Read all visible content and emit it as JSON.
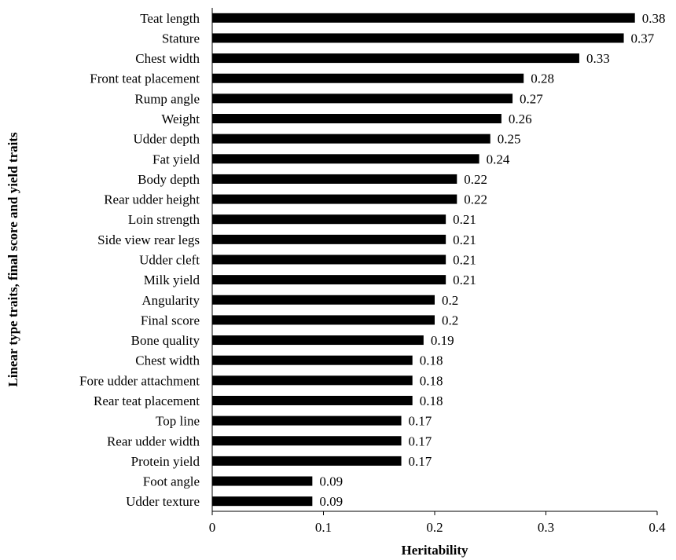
{
  "chart_data": {
    "type": "bar",
    "orientation": "horizontal",
    "title": "",
    "xlabel": "Heritability",
    "ylabel": "Linear type traits, final score and yield traits",
    "xlim": [
      0,
      0.4
    ],
    "xticks": [
      "0",
      "0.1",
      "0.2",
      "0.3",
      "0.4"
    ],
    "grid": false,
    "legend": "none",
    "bar_color": "#000000",
    "categories": [
      "Teat length",
      "Stature",
      "Chest width",
      "Front teat placement",
      "Rump angle",
      "Weight",
      "Udder depth",
      "Fat yield",
      "Body depth",
      "Rear udder height",
      "Loin strength",
      "Side view rear legs",
      "Udder cleft",
      "Milk yield",
      "Angularity",
      "Final score",
      "Bone quality",
      "Chest width",
      "Fore udder attachment",
      "Rear teat placement",
      "Top line",
      "Rear udder width",
      "Protein yield",
      "Foot angle",
      "Udder texture"
    ],
    "values": [
      0.38,
      0.37,
      0.33,
      0.28,
      0.27,
      0.26,
      0.25,
      0.24,
      0.22,
      0.22,
      0.21,
      0.21,
      0.21,
      0.21,
      0.2,
      0.2,
      0.19,
      0.18,
      0.18,
      0.18,
      0.17,
      0.17,
      0.17,
      0.09,
      0.09
    ],
    "value_labels": [
      "0.38",
      "0.37",
      "0.33",
      "0.28",
      "0.27",
      "0.26",
      "0.25",
      "0.24",
      "0.22",
      "0.22",
      "0.21",
      "0.21",
      "0.21",
      "0.21",
      "0.2",
      "0.2",
      "0.19",
      "0.18",
      "0.18",
      "0.18",
      "0.17",
      "0.17",
      "0.17",
      "0.09",
      "0.09"
    ]
  }
}
